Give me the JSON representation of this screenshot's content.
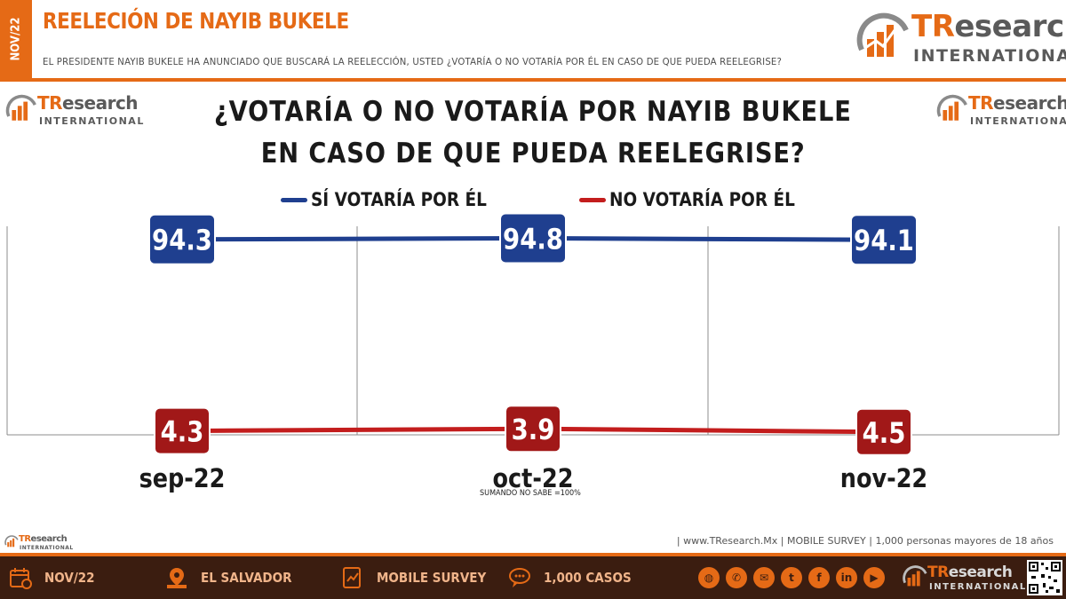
{
  "header": {
    "date_tab": "NOV/22",
    "title": "REELECIÓN DE NAYIB BUKELE",
    "subtitle": "EL PRESIDENTE NAYIB BUKELE HA ANUNCIADO QUE BUSCARÁ LA REELECCIÓN, USTED ¿VOTARÍA O NO VOTARÍA POR ÉL EN CASO DE QUE PUEDA REELEGRISE?"
  },
  "brand": {
    "tr": "TR",
    "rest": "esearch",
    "sub": "INTERNATIONAL",
    "color": "#e56a16"
  },
  "chart_data": {
    "type": "line",
    "title_line1": "¿VOTARÍA O NO VOTARÍA POR NAYIB BUKELE",
    "title_line2": "EN CASO DE QUE PUEDA REELEGRISE?",
    "categories": [
      "sep-22",
      "oct-22",
      "nov-22"
    ],
    "series": [
      {
        "name": "SÍ VOTARÍA POR ÉL",
        "values": [
          94.3,
          94.8,
          94.1
        ],
        "labels": [
          "94.3",
          "94.8",
          "94.1"
        ],
        "color": "#1f3f8f",
        "box_color": "#1f3f8f"
      },
      {
        "name": "NO VOTARÍA POR ÉL",
        "values": [
          4.3,
          3.9,
          4.5
        ],
        "labels": [
          "4.3",
          "3.9",
          "4.5"
        ],
        "color": "#c31d1d",
        "box_color": "#a11818"
      }
    ],
    "note": "SUMANDO NO SABE =100%",
    "grid": "vertical",
    "legend": "top"
  },
  "source": {
    "text": "| www.TResearch.Mx | MOBILE SURVEY | 1,000 personas mayores de 18 años"
  },
  "footer": {
    "items": [
      {
        "icon": "calendar-icon",
        "label": "NOV/22"
      },
      {
        "icon": "map-pin-icon",
        "label": "EL SALVADOR"
      },
      {
        "icon": "survey-icon",
        "label": "MOBILE SURVEY"
      },
      {
        "icon": "chat-icon",
        "label": "1,000 CASOS"
      }
    ],
    "social": [
      "globe-icon",
      "phone-icon",
      "mail-icon",
      "twitter-icon",
      "facebook-icon",
      "linkedin-icon",
      "youtube-icon"
    ]
  }
}
